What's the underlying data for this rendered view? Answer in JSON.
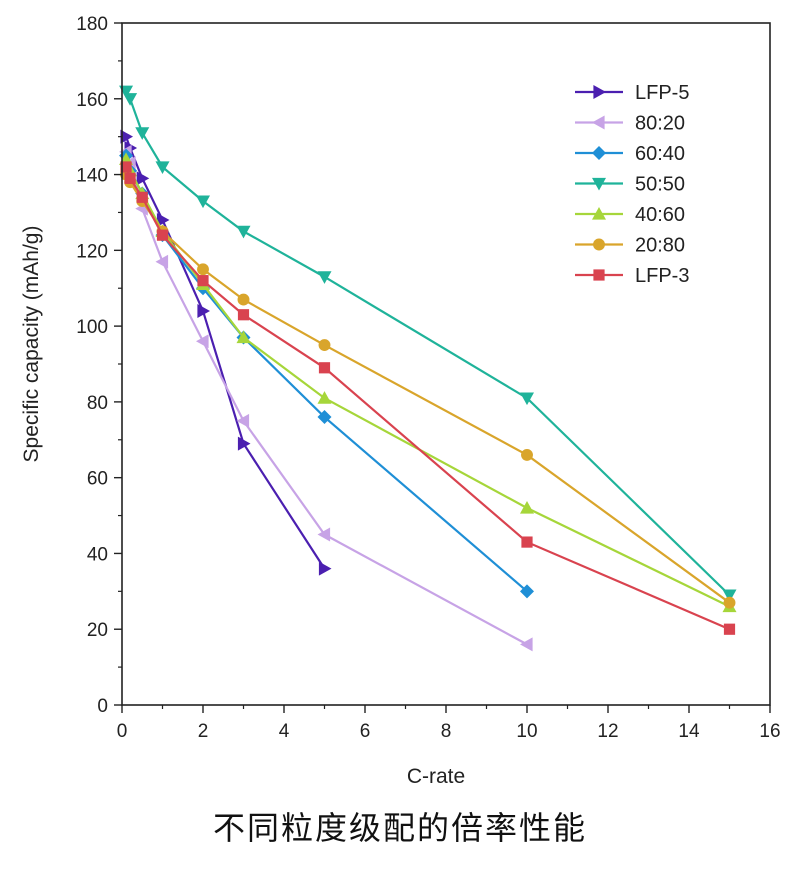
{
  "caption": "不同粒度级配的倍率性能",
  "chart_data": {
    "type": "line",
    "xlabel": "C-rate",
    "ylabel": "Specific capacity (mAh/g)",
    "xlim": [
      0,
      16
    ],
    "ylim": [
      0,
      180
    ],
    "xticks": [
      0,
      2,
      4,
      6,
      8,
      10,
      12,
      14,
      16
    ],
    "yticks": [
      0,
      20,
      40,
      60,
      80,
      100,
      120,
      140,
      160,
      180
    ],
    "grid": false,
    "legend_position": "top-right",
    "series": [
      {
        "name": "LFP-5",
        "color": "#4b1fb0",
        "marker": "triangle-right",
        "x": [
          0.1,
          0.2,
          0.5,
          1,
          2,
          3,
          5
        ],
        "y": [
          150,
          147,
          139,
          128,
          104,
          69,
          36
        ]
      },
      {
        "name": "80:20",
        "color": "#c7a3e6",
        "marker": "triangle-left",
        "x": [
          0.1,
          0.2,
          0.5,
          1,
          2,
          3,
          5,
          10
        ],
        "y": [
          146,
          143,
          131,
          117,
          96,
          75,
          45,
          16
        ]
      },
      {
        "name": "60:40",
        "color": "#1f8fd6",
        "marker": "diamond",
        "x": [
          0.1,
          0.2,
          0.5,
          1,
          2,
          3,
          5,
          10
        ],
        "y": [
          145,
          141,
          135,
          124,
          110,
          97,
          76,
          30
        ]
      },
      {
        "name": "50:50",
        "color": "#1fb39a",
        "marker": "triangle-down",
        "x": [
          0.1,
          0.2,
          0.5,
          1,
          2,
          3,
          5,
          10,
          15
        ],
        "y": [
          162,
          160,
          151,
          142,
          133,
          125,
          113,
          81,
          29
        ]
      },
      {
        "name": "40:60",
        "color": "#a6d63a",
        "marker": "triangle-up",
        "x": [
          0.1,
          0.2,
          0.5,
          1,
          2,
          3,
          5,
          10,
          15
        ],
        "y": [
          144,
          141,
          135,
          125,
          111,
          97,
          81,
          52,
          26
        ]
      },
      {
        "name": "20:80",
        "color": "#d9a52b",
        "marker": "circle",
        "x": [
          0.1,
          0.2,
          0.5,
          1,
          2,
          3,
          5,
          10,
          15
        ],
        "y": [
          140,
          138,
          133,
          125,
          115,
          107,
          95,
          66,
          27
        ]
      },
      {
        "name": "LFP-3",
        "color": "#d9434f",
        "marker": "square",
        "x": [
          0.1,
          0.2,
          0.5,
          1,
          2,
          3,
          5,
          10,
          15
        ],
        "y": [
          142,
          139,
          134,
          124,
          112,
          103,
          89,
          43,
          20
        ]
      }
    ]
  }
}
